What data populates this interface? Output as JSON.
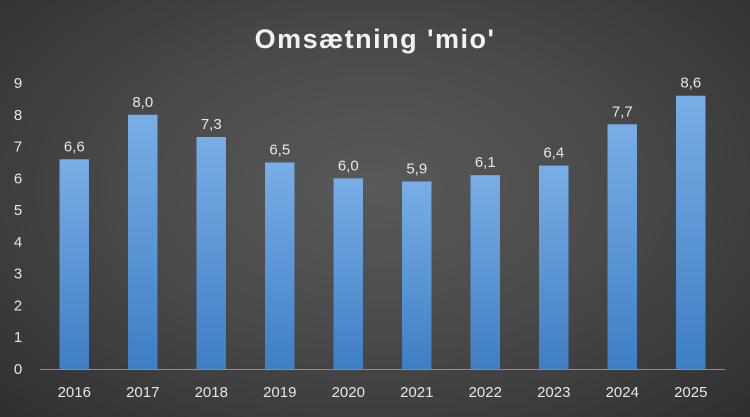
{
  "chart_data": {
    "type": "bar",
    "title": "Omsætning 'mio'",
    "categories": [
      "2016",
      "2017",
      "2018",
      "2019",
      "2020",
      "2021",
      "2022",
      "2023",
      "2024",
      "2025"
    ],
    "values": [
      6.6,
      8.0,
      7.3,
      6.5,
      6.0,
      5.9,
      6.1,
      6.4,
      7.7,
      8.6
    ],
    "data_labels": [
      "6,6",
      "8,0",
      "7,3",
      "6,5",
      "6,0",
      "5,9",
      "6,1",
      "6,4",
      "7,7",
      "8,6"
    ],
    "ylim": [
      0,
      9
    ],
    "yticks": [
      0,
      1,
      2,
      3,
      4,
      5,
      6,
      7,
      8,
      9
    ],
    "xlabel": "",
    "ylabel": "",
    "grid": false,
    "legend": "none",
    "bar_color_top": "#79aee6",
    "bar_color_bottom": "#3f7ec4",
    "background_color": "#4a4a4a"
  }
}
